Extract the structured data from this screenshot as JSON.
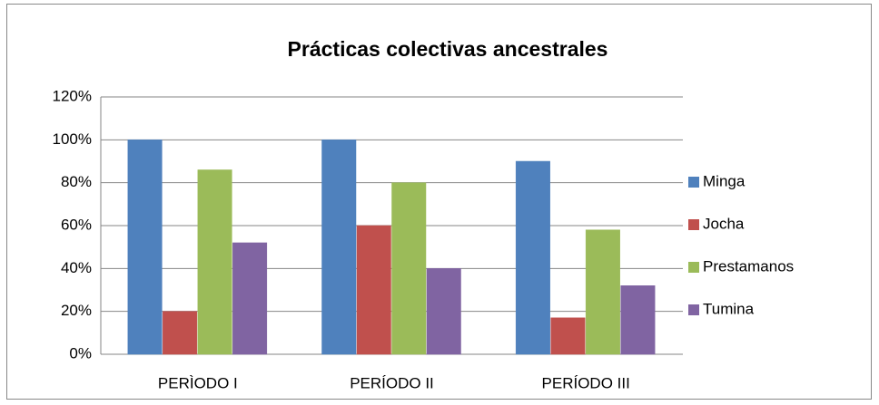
{
  "chart_data": {
    "type": "bar",
    "title": "Prácticas colectivas ancestrales",
    "categories": [
      "PERÌODO I",
      "PERÍODO II",
      "PERÍODO III"
    ],
    "series": [
      {
        "name": "Minga",
        "color": "#4f81bd",
        "values": [
          100,
          100,
          90
        ]
      },
      {
        "name": "Jocha",
        "color": "#c0504d",
        "values": [
          20,
          60,
          17
        ]
      },
      {
        "name": "Prestamanos",
        "color": "#9bbb59",
        "values": [
          86,
          80,
          58
        ]
      },
      {
        "name": "Tumina",
        "color": "#8064a2",
        "values": [
          52,
          40,
          32
        ]
      }
    ],
    "ylim": [
      0,
      120
    ],
    "yticks": [
      {
        "value": 0,
        "label": "0%"
      },
      {
        "value": 20,
        "label": "20%"
      },
      {
        "value": 40,
        "label": "40%"
      },
      {
        "value": 60,
        "label": "60%"
      },
      {
        "value": 80,
        "label": "80%"
      },
      {
        "value": 100,
        "label": "100%"
      },
      {
        "value": 120,
        "label": "120%"
      }
    ],
    "grid": true,
    "legend": "right"
  }
}
